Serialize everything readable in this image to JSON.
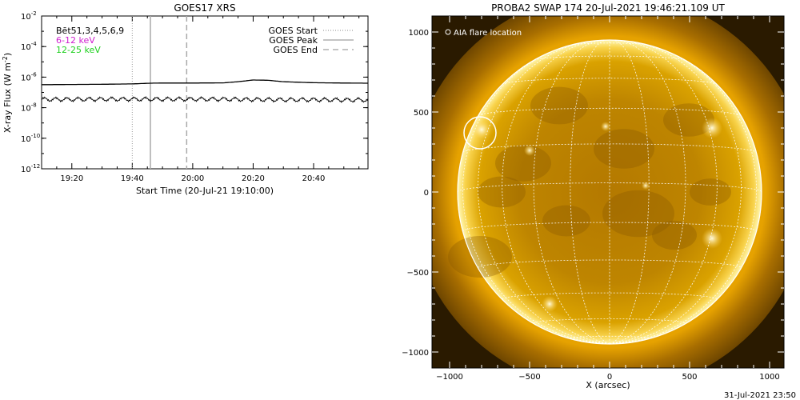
{
  "goes_panel": {
    "title": "GOES17 XRS",
    "ylabel_main": "X-ray Flux (W m",
    "ylabel_sup": "-2",
    "ylabel_close": ")",
    "xlabel": "Start Time (20-Jul-21 19:10:00)",
    "legend_left": {
      "line1": "Bēt51,3,4,5,6,9",
      "line2": "6-12 keV",
      "line3": "12-25 keV"
    },
    "legend_right": {
      "start": "GOES Start",
      "peak": "GOES Peak",
      "end": "GOES End"
    }
  },
  "swap_panel": {
    "title": "PROBA2 SWAP 174 20-Jul-2021 19:46:21.109 UT",
    "xlabel": "X (arcsec)",
    "legend": "AIA flare location",
    "timestamp": "31-Jul-2021 23:50"
  },
  "colors": {
    "low_channel": "#000000",
    "high_channel_legend": "#d020d0",
    "low_channel_legend": "#20d020",
    "sun_rim": "#fff6a8",
    "sun_disk": "#b97f00",
    "grid": "#ffffff"
  },
  "chart_data": [
    {
      "type": "line",
      "title": "GOES17 XRS",
      "xlabel": "Start Time (20-Jul-21 19:10:00)",
      "ylabel": "X-ray Flux (W m-2)",
      "y_scale": "log",
      "ylim": [
        1e-12,
        0.01
      ],
      "xlim": [
        "19:10",
        "20:58"
      ],
      "x_ticks": [
        "19:20",
        "19:40",
        "20:00",
        "20:20",
        "20:40"
      ],
      "y_ticks": [
        "10-12",
        "10-10",
        "10-8",
        "10-6",
        "10-4",
        "10-2"
      ],
      "markers": {
        "goes_start": "19:40",
        "goes_peak": "19:46",
        "goes_end": "19:58"
      },
      "series": [
        {
          "name": "6-12 keV",
          "x": [
            "19:10",
            "19:20",
            "19:30",
            "19:40",
            "19:46",
            "19:50",
            "20:00",
            "20:10",
            "20:15",
            "20:20",
            "20:25",
            "20:30",
            "20:40",
            "20:50",
            "20:58"
          ],
          "values": [
            3.2e-07,
            3.3e-07,
            3.4e-07,
            3.6e-07,
            4e-07,
            4.1e-07,
            4.1e-07,
            4.2e-07,
            5e-07,
            6.5e-07,
            6.2e-07,
            5e-07,
            4.3e-07,
            4.1e-07,
            4e-07
          ]
        },
        {
          "name": "12-25 keV",
          "x": [
            "19:10",
            "19:20",
            "19:30",
            "19:40",
            "19:46",
            "19:50",
            "20:00",
            "20:10",
            "20:20",
            "20:30",
            "20:40",
            "20:50",
            "20:58"
          ],
          "values": [
            3.5e-08,
            3.5e-08,
            3.6e-08,
            3.6e-08,
            3.6e-08,
            3.6e-08,
            3.6e-08,
            3.6e-08,
            3.4e-08,
            3.3e-08,
            3.3e-08,
            3.2e-08,
            3.2e-08
          ]
        }
      ]
    },
    {
      "type": "image",
      "title": "PROBA2 SWAP 174 20-Jul-2021 19:46:21.109 UT",
      "xlabel": "X (arcsec)",
      "xlim": [
        -1100,
        1100
      ],
      "ylim": [
        -1100,
        1000
      ],
      "x_ticks": [
        -1000,
        -500,
        0,
        500,
        1000
      ],
      "y_ticks": [
        -1000,
        -500,
        0,
        500,
        1000
      ],
      "solar_radius_arcsec": 950,
      "flare_location": {
        "x": -810,
        "y": 370,
        "radius": 100
      },
      "grid": true
    }
  ]
}
